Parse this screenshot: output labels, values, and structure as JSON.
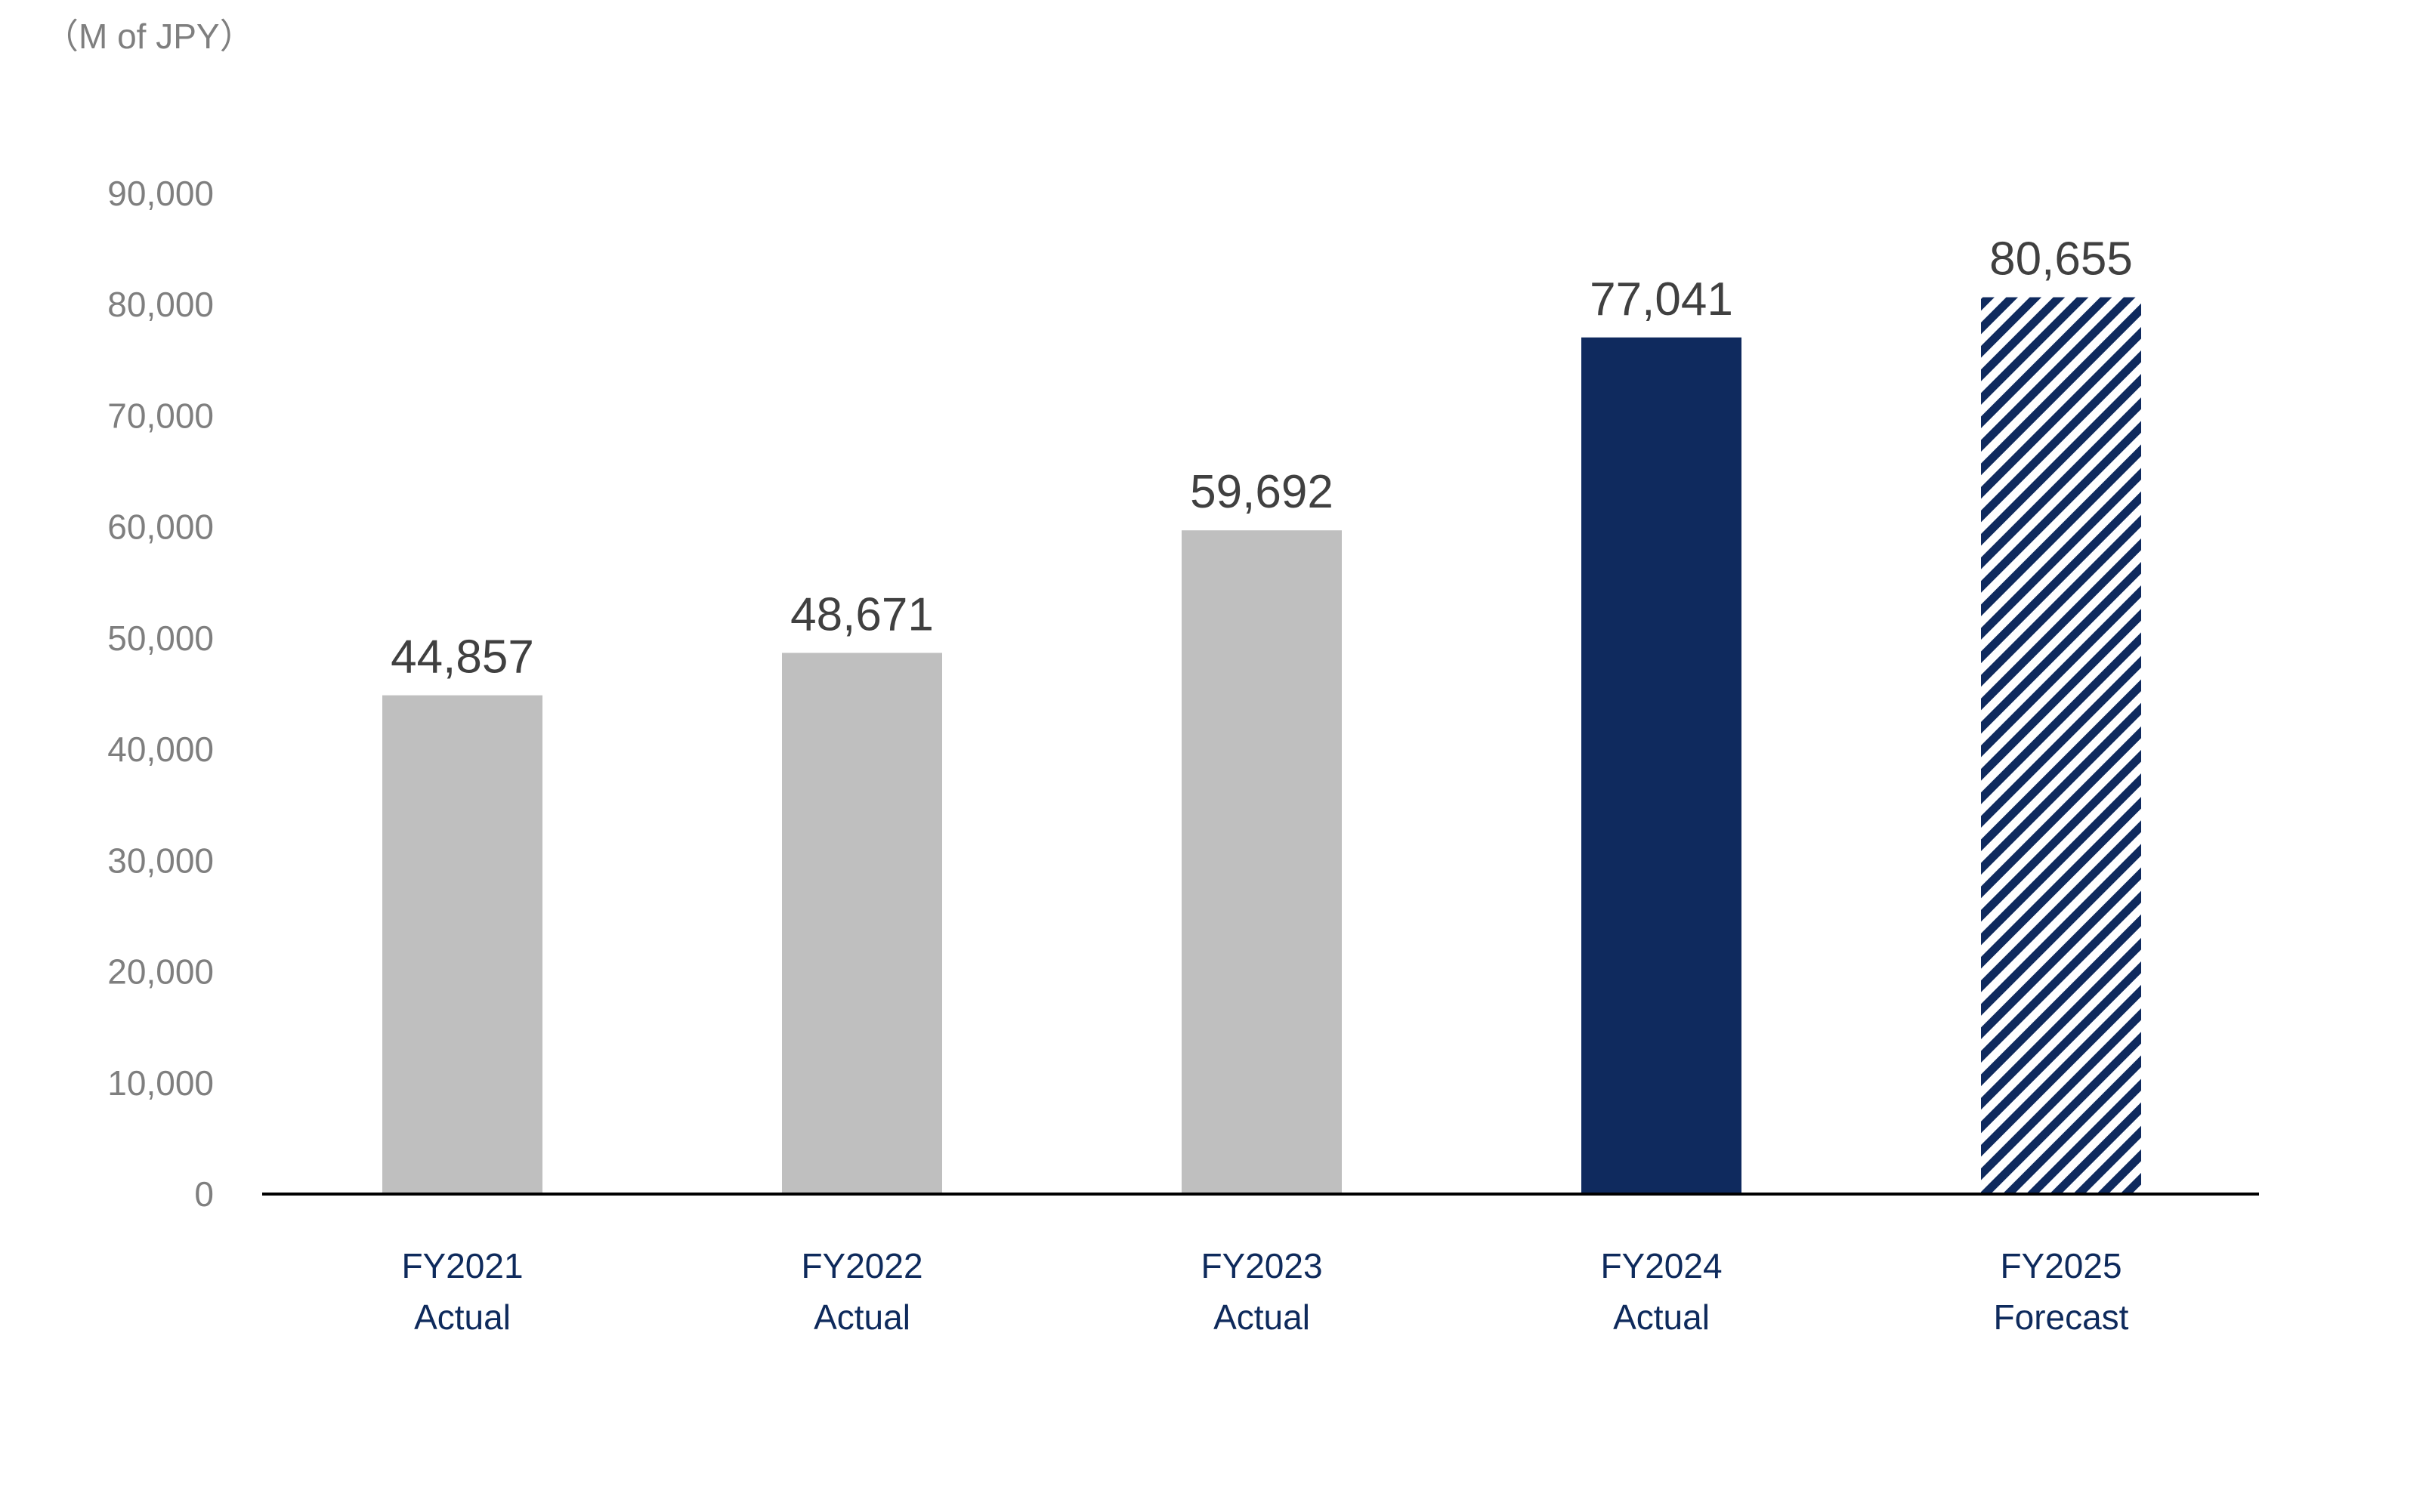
{
  "chart_data": {
    "type": "bar",
    "unit_label": "（M of JPY）",
    "categories": [
      [
        "FY2021",
        "Actual"
      ],
      [
        "FY2022",
        "Actual"
      ],
      [
        "FY2023",
        "Actual"
      ],
      [
        "FY2024",
        "Actual"
      ],
      [
        "FY2025",
        "Forecast"
      ]
    ],
    "values": [
      44857,
      48671,
      59692,
      77041,
      80655
    ],
    "value_labels": [
      "44,857",
      "48,671",
      "59,692",
      "77,041",
      "80,655"
    ],
    "bar_styles": [
      "gray",
      "gray",
      "gray",
      "navy",
      "hatched"
    ],
    "ylim": [
      0,
      90000
    ],
    "yticks": [
      0,
      10000,
      20000,
      30000,
      40000,
      50000,
      60000,
      70000,
      80000,
      90000
    ],
    "ytick_labels": [
      "0",
      "10,000",
      "20,000",
      "30,000",
      "40,000",
      "50,000",
      "60,000",
      "70,000",
      "80,000",
      "90,000"
    ],
    "grid": false,
    "legend": "none",
    "colors": {
      "gray": "#bfbfbf",
      "navy": "#0f2a5e",
      "hatch": "#0f2a5e",
      "axis": "#000000",
      "tick_text": "#7f7f7f",
      "value_text": "#404040",
      "category_text": "#0e2a5c"
    }
  }
}
